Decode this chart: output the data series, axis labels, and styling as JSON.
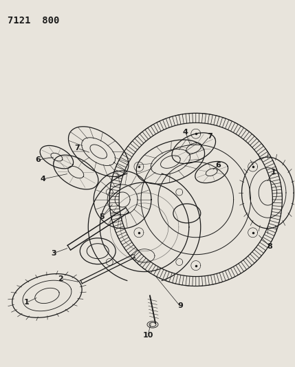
{
  "title": "7121  800",
  "bg_color": "#e8e4dc",
  "line_color": "#1a1a1a",
  "title_fontsize": 10,
  "fig_w": 4.29,
  "fig_h": 5.33,
  "dpi": 100
}
